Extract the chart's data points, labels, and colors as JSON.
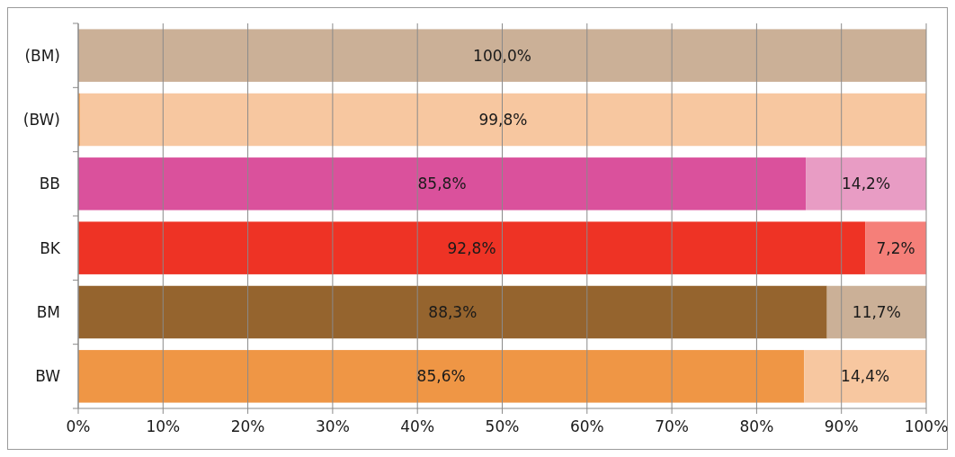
{
  "chart_data": {
    "type": "bar",
    "orientation": "horizontal",
    "stacked": true,
    "categories": [
      "(BM)",
      "(BW)",
      "BB",
      "BK",
      "BM",
      "BW"
    ],
    "series": [
      {
        "colors": [
          "#cbb097",
          "#ef9645",
          "#da519c",
          "#ee3325",
          "#95642e",
          "#ef9645"
        ],
        "values": [
          0,
          0.2,
          85.8,
          92.8,
          88.3,
          85.6
        ],
        "value_labels": [
          null,
          null,
          "85,8%",
          "92,8%",
          "88,3%",
          "85,6%"
        ]
      },
      {
        "colors": [
          "#cbb097",
          "#f7c7a0",
          "#e89cc4",
          "#f57f79",
          "#cbb097",
          "#f7c7a0"
        ],
        "values": [
          100,
          99.8,
          14.2,
          7.2,
          11.7,
          14.4
        ],
        "value_labels": [
          "100,0%",
          "99,8%",
          "14,2%",
          "7,2%",
          "11,7%",
          "14,4%"
        ]
      }
    ],
    "xlim": [
      0,
      100
    ],
    "xticks": [
      {
        "value": 0,
        "label": "0%"
      },
      {
        "value": 10,
        "label": "10%"
      },
      {
        "value": 20,
        "label": "20%"
      },
      {
        "value": 30,
        "label": "30%"
      },
      {
        "value": 40,
        "label": "40%"
      },
      {
        "value": 50,
        "label": "50%"
      },
      {
        "value": 60,
        "label": "60%"
      },
      {
        "value": 70,
        "label": "70%"
      },
      {
        "value": 80,
        "label": "80%"
      },
      {
        "value": 90,
        "label": "90%"
      },
      {
        "value": 100,
        "label": "100%"
      }
    ],
    "grid": "x"
  }
}
